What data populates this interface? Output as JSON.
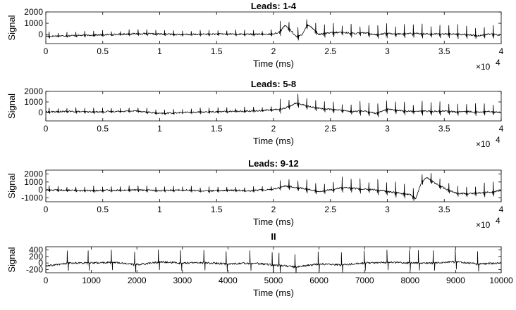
{
  "chart_data": [
    {
      "type": "line",
      "title": "Leads: 1-4",
      "xlabel": "Time (ms)",
      "ylabel": "Signal",
      "xlim": [
        0,
        40000
      ],
      "ylim": [
        -800,
        2000
      ],
      "xticks": [
        0,
        5000,
        10000,
        15000,
        20000,
        25000,
        30000,
        35000,
        40000
      ],
      "xtick_labels": [
        "0",
        "0.5",
        "1",
        "1.5",
        "2",
        "2.5",
        "3",
        "3.5",
        "4"
      ],
      "yticks": [
        0,
        1000,
        2000
      ],
      "ytick_labels": [
        "0",
        "1000",
        "2000"
      ],
      "x_exponent": "×10",
      "x_exponent_power": "4",
      "series": [
        {
          "x": [
            0,
            2000,
            4000,
            6000,
            8000,
            10000,
            12000,
            14000,
            16000,
            18000,
            19800,
            20500,
            21000,
            21500,
            22000,
            22500,
            23000,
            23500,
            24000,
            24500,
            25000,
            26000,
            27000,
            28000,
            29000,
            30000,
            31000,
            32000,
            33000,
            34000,
            35000,
            36000,
            37000,
            38000,
            39000,
            40000
          ],
          "y": [
            -150,
            -100,
            -50,
            0,
            80,
            50,
            0,
            30,
            50,
            20,
            40,
            200,
            800,
            400,
            -200,
            0,
            900,
            500,
            0,
            100,
            150,
            200,
            100,
            150,
            0,
            100,
            50,
            100,
            80,
            50,
            60,
            30,
            0,
            -100,
            50,
            -50
          ]
        }
      ]
    },
    {
      "type": "line",
      "title": "Leads: 5-8",
      "xlabel": "Time (ms)",
      "ylabel": "Signal",
      "xlim": [
        0,
        40000
      ],
      "ylim": [
        -800,
        2000
      ],
      "xticks": [
        0,
        5000,
        10000,
        15000,
        20000,
        25000,
        30000,
        35000,
        40000
      ],
      "xtick_labels": [
        "0",
        "0.5",
        "1",
        "1.5",
        "2",
        "2.5",
        "3",
        "3.5",
        "4"
      ],
      "yticks": [
        0,
        1000,
        2000
      ],
      "ytick_labels": [
        "0",
        "1000",
        "2000"
      ],
      "x_exponent": "×10",
      "x_exponent_power": "4",
      "series": [
        {
          "x": [
            0,
            2000,
            4000,
            6000,
            8000,
            10000,
            12000,
            14000,
            16000,
            18000,
            20000,
            21000,
            22000,
            23000,
            24000,
            25000,
            26000,
            27000,
            28000,
            29000,
            30000,
            31000,
            32000,
            33000,
            34000,
            35000,
            36000,
            37000,
            38000,
            39000,
            40000
          ],
          "y": [
            50,
            100,
            50,
            100,
            150,
            -100,
            0,
            50,
            100,
            150,
            250,
            400,
            900,
            600,
            400,
            300,
            200,
            100,
            150,
            -100,
            300,
            200,
            100,
            150,
            100,
            150,
            50,
            100,
            50,
            100,
            0
          ]
        }
      ]
    },
    {
      "type": "line",
      "title": "Leads: 9-12",
      "xlabel": "Time (ms)",
      "ylabel": "Signal",
      "xlim": [
        0,
        40000
      ],
      "ylim": [
        -1500,
        2500
      ],
      "xticks": [
        0,
        5000,
        10000,
        15000,
        20000,
        25000,
        30000,
        35000,
        40000
      ],
      "xtick_labels": [
        "0",
        "0.5",
        "1",
        "1.5",
        "2",
        "2.5",
        "3",
        "3.5",
        "4"
      ],
      "yticks": [
        -1000,
        0,
        1000,
        2000
      ],
      "ytick_labels": [
        "-1000",
        "0",
        "1000",
        "2000"
      ],
      "x_exponent": "×10",
      "x_exponent_power": "4",
      "series": [
        {
          "x": [
            0,
            2000,
            4000,
            6000,
            8000,
            10000,
            12000,
            14000,
            16000,
            18000,
            20000,
            21000,
            22000,
            23000,
            24000,
            25000,
            26000,
            27000,
            28000,
            29000,
            30000,
            31000,
            32000,
            32500,
            33000,
            33500,
            34000,
            35000,
            36000,
            37000,
            38000,
            39000,
            40000
          ],
          "y": [
            0,
            -50,
            -100,
            -50,
            0,
            -100,
            0,
            -150,
            -50,
            -100,
            100,
            500,
            300,
            100,
            -200,
            0,
            300,
            200,
            100,
            0,
            -200,
            -400,
            -600,
            -1100,
            1000,
            1600,
            1000,
            200,
            -400,
            -500,
            -400,
            -300,
            -100
          ]
        }
      ]
    },
    {
      "type": "line",
      "title": "II",
      "xlabel": "Time (ms)",
      "ylabel": "Signal",
      "xlim": [
        0,
        10000
      ],
      "ylim": [
        -300,
        500
      ],
      "xticks": [
        0,
        1000,
        2000,
        3000,
        4000,
        5000,
        6000,
        7000,
        8000,
        9000,
        10000
      ],
      "xtick_labels": [
        "0",
        "1000",
        "2000",
        "3000",
        "4000",
        "5000",
        "6000",
        "7000",
        "8000",
        "9000",
        "10000"
      ],
      "yticks": [
        -200,
        0,
        200,
        400
      ],
      "ytick_labels": [
        "-200",
        "0",
        "200",
        "400"
      ],
      "r_peaks_ms": [
        470,
        930,
        1440,
        1950,
        2470,
        2960,
        3470,
        3960,
        4480,
        4970,
        5120,
        5470,
        5980,
        6490,
        6990,
        7490,
        7980,
        8180,
        8510,
        8990,
        9480
      ],
      "series": [
        {
          "x": [
            0,
            500,
            1000,
            1500,
            2000,
            2500,
            3000,
            3500,
            4000,
            4500,
            5000,
            5500,
            6000,
            6500,
            7000,
            7500,
            8000,
            8500,
            9000,
            9500,
            10000
          ],
          "y": [
            -100,
            0,
            0,
            20,
            -50,
            30,
            0,
            10,
            -30,
            0,
            -60,
            -120,
            -30,
            -60,
            0,
            20,
            10,
            0,
            40,
            -30,
            0
          ]
        }
      ]
    }
  ]
}
